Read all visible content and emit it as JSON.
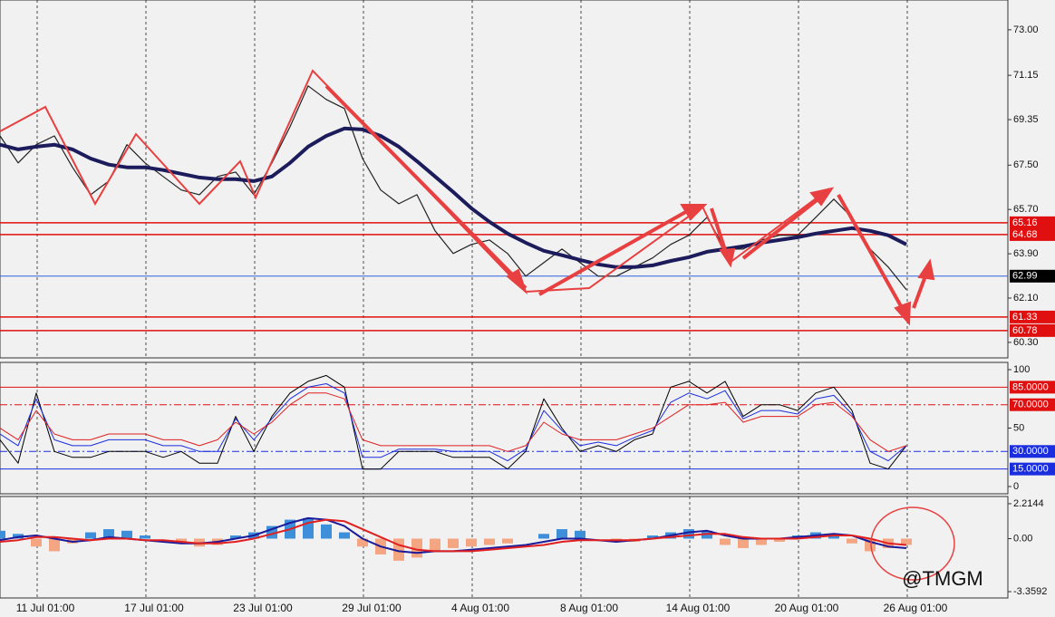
{
  "chart_data": [
    {
      "type": "line",
      "x": [
        0,
        2,
        4,
        6,
        8,
        10,
        12,
        14,
        16,
        18,
        20,
        22,
        24,
        26,
        28,
        30,
        32,
        34,
        36,
        38,
        40,
        42,
        44,
        46,
        48,
        50,
        52,
        54,
        56,
        58,
        60,
        62,
        64,
        66,
        68,
        70,
        72,
        74,
        76,
        78,
        80,
        82,
        84,
        86,
        88,
        90,
        92,
        94,
        96,
        98,
        100
      ],
      "series": [
        {
          "color": "#222222",
          "line_width": 1.2,
          "values": [
            68.69,
            67.59,
            68.33,
            68.69,
            67.41,
            66.3,
            66.85,
            68.33,
            67.59,
            67.04,
            66.49,
            66.3,
            67.04,
            67.22,
            66.3,
            67.59,
            69.06,
            70.72,
            70.17,
            69.8,
            67.77,
            66.49,
            65.93,
            66.3,
            64.83,
            63.91,
            64.28,
            64.46,
            63.91,
            62.99,
            63.54,
            64.09,
            63.54,
            62.99,
            62.99,
            63.36,
            63.73,
            64.28,
            64.65,
            65.38,
            64.09,
            64.09,
            64.46,
            64.65,
            64.65,
            65.38,
            66.12,
            65.38,
            64.09,
            63.36,
            62.44
          ]
        },
        {
          "color": "#1c1c5c",
          "line_width": 4,
          "values": [
            68.33,
            68.14,
            68.25,
            68.33,
            68.14,
            67.77,
            67.52,
            67.41,
            67.41,
            67.3,
            67.15,
            67.0,
            66.93,
            66.93,
            66.85,
            67.04,
            67.59,
            68.25,
            68.69,
            68.99,
            68.95,
            68.69,
            68.25,
            67.66,
            67.04,
            66.41,
            65.75,
            65.2,
            64.72,
            64.35,
            64.02,
            63.84,
            63.65,
            63.47,
            63.36,
            63.36,
            63.43,
            63.61,
            63.76,
            63.98,
            64.09,
            64.2,
            64.35,
            64.46,
            64.57,
            64.72,
            64.83,
            64.94,
            64.83,
            64.65,
            64.28
          ]
        }
      ],
      "ylim": [
        59.67,
        74.21
      ],
      "yticks": [
        {
          "value": 73,
          "label": "73.00"
        },
        {
          "value": 71.15,
          "label": "71.15"
        },
        {
          "value": 69.35,
          "label": "69.35"
        },
        {
          "value": 67.5,
          "label": "67.50"
        },
        {
          "value": 65.7,
          "label": "65.70"
        },
        {
          "value": 63.9,
          "label": "63.90"
        },
        {
          "value": 62.1,
          "label": "62.10"
        },
        {
          "value": 60.3,
          "label": "60.30"
        }
      ],
      "levels": [
        {
          "value": 65.16,
          "color": "#e01010"
        },
        {
          "value": 64.68,
          "color": "#e01010"
        },
        {
          "value": 62.99,
          "color": "#3060e0"
        },
        {
          "value": 61.33,
          "color": "#e01010"
        },
        {
          "value": 60.78,
          "color": "#e01010"
        }
      ]
    },
    {
      "type": "line",
      "x": [
        0,
        2,
        4,
        6,
        8,
        10,
        12,
        14,
        16,
        18,
        20,
        22,
        24,
        26,
        28,
        30,
        32,
        34,
        36,
        38,
        40,
        42,
        44,
        46,
        48,
        50,
        52,
        54,
        56,
        58,
        60,
        62,
        64,
        66,
        68,
        70,
        72,
        74,
        76,
        78,
        80,
        82,
        84,
        86,
        88,
        90,
        92,
        94,
        96,
        98,
        100
      ],
      "series": [
        {
          "color": "#000000",
          "line_width": 1,
          "values": [
            40,
            20,
            80,
            30,
            25,
            25,
            30,
            30,
            30,
            25,
            30,
            20,
            20,
            60,
            30,
            60,
            80,
            90,
            95,
            85,
            15,
            15,
            30,
            30,
            30,
            25,
            25,
            25,
            15,
            30,
            75,
            50,
            30,
            35,
            30,
            40,
            45,
            85,
            90,
            80,
            90,
            60,
            70,
            70,
            65,
            80,
            85,
            65,
            20,
            15,
            35
          ]
        },
        {
          "color": "#1a2ee0",
          "line_width": 1,
          "values": [
            45,
            35,
            75,
            40,
            35,
            35,
            40,
            40,
            40,
            35,
            35,
            30,
            30,
            58,
            40,
            58,
            75,
            85,
            88,
            80,
            25,
            25,
            32,
            32,
            32,
            30,
            30,
            30,
            22,
            32,
            65,
            48,
            35,
            38,
            35,
            42,
            48,
            72,
            80,
            75,
            82,
            58,
            65,
            65,
            62,
            75,
            78,
            62,
            30,
            22,
            35
          ]
        },
        {
          "color": "#e02020",
          "line_width": 1,
          "values": [
            50,
            40,
            65,
            45,
            40,
            40,
            45,
            45,
            45,
            40,
            40,
            35,
            40,
            55,
            45,
            55,
            70,
            80,
            80,
            75,
            40,
            35,
            35,
            35,
            35,
            35,
            35,
            35,
            30,
            35,
            55,
            45,
            40,
            40,
            40,
            45,
            50,
            60,
            70,
            70,
            72,
            55,
            60,
            60,
            60,
            70,
            72,
            60,
            40,
            30,
            35
          ]
        }
      ],
      "ylim": [
        -6.2,
        106.2
      ],
      "yticks": [
        100,
        50,
        0
      ],
      "levels": [
        {
          "value": 85,
          "label": "85.0000",
          "color": "#e01010"
        },
        {
          "value": 70,
          "label": "70.0000",
          "color": "#e01010"
        },
        {
          "value": 30,
          "label": "30.0000",
          "color": "#1a2ee0"
        },
        {
          "value": 15,
          "label": "15.0000",
          "color": "#1a2ee0"
        }
      ]
    },
    {
      "type": "line",
      "x": [
        0,
        2,
        4,
        6,
        8,
        10,
        12,
        14,
        16,
        18,
        20,
        22,
        24,
        26,
        28,
        30,
        32,
        34,
        36,
        38,
        40,
        42,
        44,
        46,
        48,
        50,
        52,
        54,
        56,
        58,
        60,
        62,
        64,
        66,
        68,
        70,
        72,
        74,
        76,
        78,
        80,
        82,
        84,
        86,
        88,
        90,
        92,
        94,
        96,
        98,
        100
      ],
      "series": [
        {
          "type": "bar",
          "positive_color": "#3d8fd9",
          "negative_color": "#f4a582",
          "values": [
            0.5,
            0.3,
            -0.5,
            -0.8,
            -0.3,
            0.4,
            0.6,
            0.5,
            0.2,
            0.0,
            -0.3,
            -0.5,
            -0.4,
            0.2,
            0.4,
            0.8,
            1.2,
            1.3,
            0.9,
            0.4,
            -0.5,
            -1.0,
            -1.4,
            -1.2,
            -0.8,
            -0.6,
            -0.5,
            -0.4,
            -0.3,
            0.0,
            0.3,
            0.6,
            0.5,
            0.0,
            -0.2,
            -0.2,
            0.2,
            0.4,
            0.6,
            0.5,
            -0.4,
            -0.6,
            -0.4,
            -0.2,
            0.2,
            0.4,
            0.2,
            -0.3,
            -0.8,
            -0.6,
            -0.4
          ]
        },
        {
          "color": "#1a1a9a",
          "line_width": 2,
          "values": [
            -0.1,
            0.1,
            0.2,
            0.0,
            -0.2,
            -0.1,
            0.1,
            0.0,
            -0.1,
            -0.2,
            -0.3,
            -0.3,
            -0.2,
            0.0,
            0.2,
            0.6,
            1.0,
            1.3,
            1.2,
            0.8,
            0.0,
            -0.5,
            -0.8,
            -0.9,
            -0.8,
            -0.8,
            -0.7,
            -0.6,
            -0.5,
            -0.4,
            -0.2,
            0.0,
            0.0,
            -0.1,
            -0.2,
            -0.1,
            0.0,
            0.2,
            0.4,
            0.5,
            0.2,
            0.0,
            0.0,
            0.0,
            0.1,
            0.2,
            0.3,
            0.2,
            -0.2,
            -0.5,
            -0.6
          ]
        },
        {
          "color": "#e02020",
          "line_width": 2,
          "values": [
            -0.2,
            -0.1,
            0.1,
            0.1,
            0.0,
            -0.1,
            0.0,
            0.0,
            -0.1,
            -0.1,
            -0.2,
            -0.3,
            -0.3,
            -0.2,
            0.0,
            0.3,
            0.6,
            1.0,
            1.2,
            1.1,
            0.6,
            0.1,
            -0.4,
            -0.7,
            -0.8,
            -0.8,
            -0.8,
            -0.7,
            -0.6,
            -0.5,
            -0.4,
            -0.2,
            -0.1,
            -0.1,
            -0.1,
            -0.1,
            0.0,
            0.1,
            0.2,
            0.3,
            0.3,
            0.1,
            0.0,
            0.0,
            0.0,
            0.1,
            0.2,
            0.2,
            0.0,
            -0.3,
            -0.4
          ]
        }
      ],
      "ylim": [
        -3.76,
        2.67
      ],
      "yticks": [
        2.2144,
        {
          "value": 0,
          "label": "0.00"
        },
        -3.3592
      ],
      "xlim": [
        0,
        111.2
      ],
      "xticks": [
        {
          "value": 4.1,
          "label": "11 Jul 01:00"
        },
        {
          "value": 16.1,
          "label": "17 Jul 01:00"
        },
        {
          "value": 28.1,
          "label": "23 Jul 01:00"
        },
        {
          "value": 40.1,
          "label": "29 Jul 01:00"
        },
        {
          "value": 52.1,
          "label": "4 Aug 01:00"
        },
        {
          "value": 64.1,
          "label": "8 Aug 01:00"
        },
        {
          "value": 76.1,
          "label": "14 Aug 01:00"
        },
        {
          "value": 88.1,
          "label": "20 Aug 01:00"
        },
        {
          "value": 100.1,
          "label": "26 Aug 01:00"
        }
      ],
      "watermark": "@TMGM"
    }
  ]
}
